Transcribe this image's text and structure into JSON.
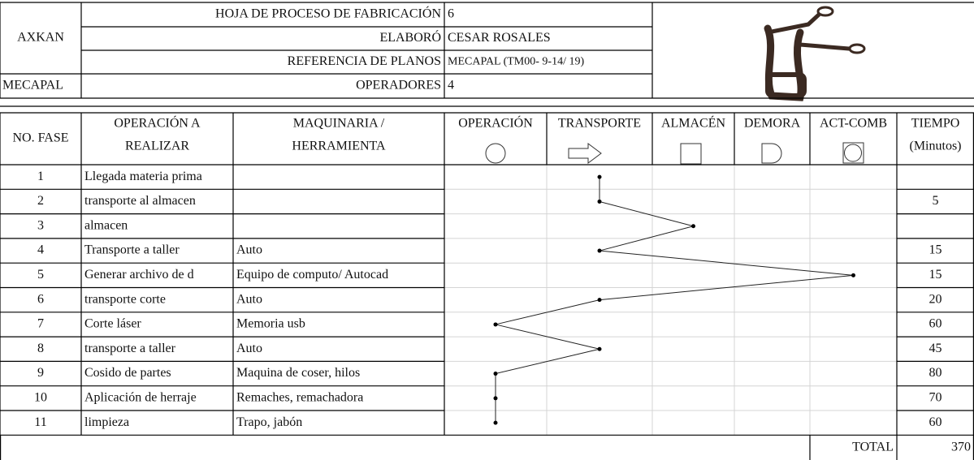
{
  "header": {
    "company": "AXKAN",
    "product": "MECAPAL",
    "fields": [
      {
        "label": "HOJA DE PROCESO DE FABRICACIÓN",
        "value": 6
      },
      {
        "label": "ELABORÓ",
        "value": "CESAR ROSALES"
      },
      {
        "label": "REFERENCIA DE PLANOS",
        "value": "MECAPAL (TM00- 9-14/ 19)"
      },
      {
        "label": "OPERADORES",
        "value": 4
      }
    ]
  },
  "table": {
    "columns": [
      [
        "NO. FASE"
      ],
      [
        "OPERACIÓN A",
        "REALIZAR"
      ],
      [
        "MAQUINARIA /",
        "HERRAMIENTA"
      ],
      [
        "OPERACIÓN"
      ],
      [
        "TRANSPORTE"
      ],
      [
        "ALMACÉN"
      ],
      [
        "DEMORA"
      ],
      [
        "ACT-COMB"
      ],
      [
        "TIEMPO",
        "(Minutos)"
      ]
    ],
    "rows": [
      {
        "fase": 1,
        "operation": "Llegada materia prima",
        "machinery": null,
        "activity": 1,
        "time": null
      },
      {
        "fase": 2,
        "operation": "transporte al almacen",
        "machinery": null,
        "activity": 1,
        "time": 5
      },
      {
        "fase": 3,
        "operation": "almacen",
        "machinery": null,
        "activity": 2,
        "time": null
      },
      {
        "fase": 4,
        "operation": "Transporte a taller",
        "machinery": "Auto",
        "activity": 1,
        "time": 15
      },
      {
        "fase": 5,
        "operation": "Generar archivo de d",
        "machinery": "Equipo de computo/ Autocad",
        "activity": 4,
        "time": 15
      },
      {
        "fase": 6,
        "operation": "transporte corte",
        "machinery": "Auto",
        "activity": 1,
        "time": 20
      },
      {
        "fase": 7,
        "operation": "Corte láser",
        "machinery": "Memoria usb",
        "activity": 0,
        "time": 60
      },
      {
        "fase": 8,
        "operation": "transporte a taller",
        "machinery": "Auto",
        "activity": 1,
        "time": 45
      },
      {
        "fase": 9,
        "operation": "Cosido de partes",
        "machinery": "Maquina de coser, hilos",
        "activity": 0,
        "time": 80
      },
      {
        "fase": 10,
        "operation": "Aplicación de herraje",
        "machinery": "Remaches, remachadora",
        "activity": 0,
        "time": 70
      },
      {
        "fase": 11,
        "operation": "limpieza",
        "machinery": "Trapo, jabón",
        "activity": 0,
        "time": 60
      }
    ],
    "total": {
      "label": "TOTAL",
      "value": 370
    }
  }
}
